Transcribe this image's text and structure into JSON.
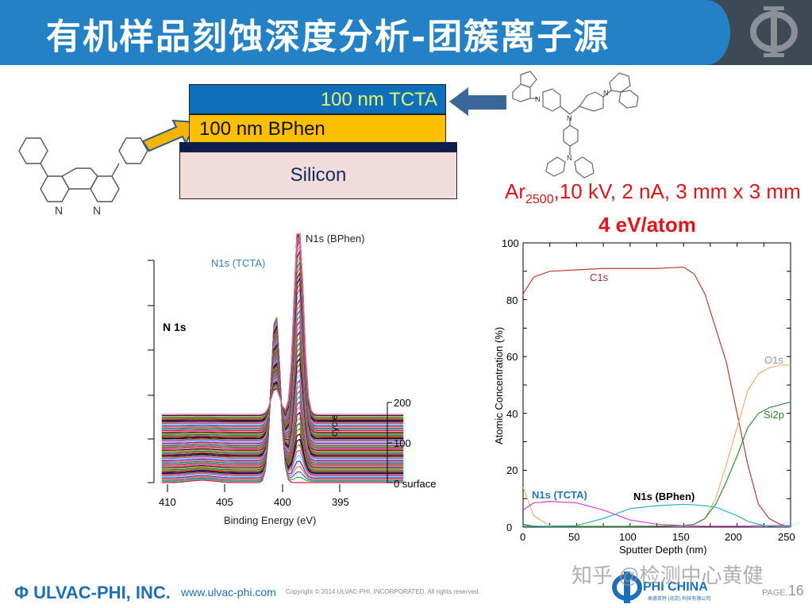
{
  "header": {
    "title": "有机样品刻蚀深度分析-团簇离子源",
    "logo_icon": "phi-logo-icon",
    "colors": {
      "blue": "#2481c5",
      "dark": "#3d4a55"
    }
  },
  "stack_diagram": {
    "layers": [
      {
        "label": "100 nm TCTA",
        "color": "#0f6fba"
      },
      {
        "label": "100 nm BPhen",
        "color": "#fcc000"
      },
      {
        "label": "Silicon",
        "color": "#f1dcdc"
      }
    ],
    "molecule_left": "BPhen structure",
    "molecule_right": "TCTA structure",
    "n_label": "N"
  },
  "conditions": {
    "beam_prefix": "Ar",
    "beam_sub": "2500",
    "beam_rest": ",10 kV, 2 nA, 3 mm x 3 mm",
    "energy": "4 eV/atom"
  },
  "chart_data": [
    {
      "type": "line",
      "title": "N 1s",
      "xlabel": "Binding Energy (eV)",
      "ylabel": "",
      "xlim": [
        412,
        391
      ],
      "x_ticks": [
        "410",
        "405",
        "400",
        "395"
      ],
      "z_axis_label": "cycle",
      "z_ticks": [
        "0 surface",
        "100",
        "200"
      ],
      "annotations": [
        "N1s (TCTA)",
        "N1s (BPhen)"
      ],
      "peaks": [
        {
          "name": "N1s (TCTA)",
          "binding_energy": 400.6,
          "color": "#3a7fb0"
        },
        {
          "name": "N1s (BPhen)",
          "binding_energy": 398.6,
          "color": "#333333"
        }
      ],
      "note": "Waterfall of N 1s spectra vs sputter cycle (0-200)"
    },
    {
      "type": "line",
      "title": "",
      "xlabel": "Sputter Depth (nm)",
      "ylabel": "Atomic Concentration (%)",
      "xlim": [
        0,
        250
      ],
      "ylim": [
        0,
        100
      ],
      "x_ticks": [
        "0",
        "50",
        "100",
        "150",
        "200",
        "250"
      ],
      "y_ticks": [
        "0",
        "20",
        "40",
        "60",
        "80",
        "100"
      ],
      "x": [
        0,
        10,
        25,
        50,
        75,
        100,
        125,
        150,
        160,
        170,
        180,
        190,
        200,
        210,
        220,
        230,
        240,
        250
      ],
      "series": [
        {
          "name": "C1s",
          "color": "#c0392b",
          "values": [
            82,
            88,
            90,
            90.5,
            91,
            91,
            91,
            91.5,
            89,
            82,
            70,
            58,
            40,
            22,
            8,
            3,
            1,
            0
          ]
        },
        {
          "name": "O1s",
          "color": "#f0b070",
          "values": [
            14,
            4,
            0.5,
            0.3,
            0.3,
            0.3,
            0.3,
            0.5,
            1,
            3,
            10,
            22,
            35,
            48,
            54,
            56,
            57,
            57
          ]
        },
        {
          "name": "Si2p",
          "color": "#2e8b3a",
          "values": [
            1,
            0.3,
            0.2,
            0.2,
            0.2,
            0.2,
            0.3,
            0.5,
            1,
            3,
            8,
            16,
            25,
            35,
            40,
            42,
            43,
            44
          ]
        },
        {
          "name": "N1s (TCTA)",
          "color": "#d63ed0",
          "values": [
            6,
            8.5,
            9,
            8.5,
            6,
            2.5,
            1,
            0.5,
            0.4,
            0.3,
            0.3,
            0.3,
            0.3,
            0.3,
            0.5,
            0.5,
            0.5,
            0.5
          ]
        },
        {
          "name": "N1s (BPhen)",
          "color": "#2fb5b5",
          "values": [
            0.5,
            0.3,
            0.3,
            0.5,
            3,
            6.5,
            7.5,
            8,
            7.8,
            7.5,
            7,
            5.5,
            4,
            2,
            1,
            0.3,
            0.2,
            0.2
          ]
        }
      ],
      "labels": {
        "c1s": "C1s",
        "o1s": "O1s",
        "si2p": "Si2p",
        "n_tcta": "N1s (TCTA)",
        "n_bphen": "N1s (BPhen)"
      }
    }
  ],
  "footer": {
    "company": "ULVAC-PHI, INC.",
    "url": "www.ulvac-phi.com",
    "copyright": "Copyright © 2014 ULVAC-PHI, INCORPORATED. All rights reserved.",
    "partner": "PHI CHINA",
    "partner_sub": "高德英特 (北京) 科技有限公司",
    "watermark": "知乎 @检测中心黄健",
    "page_label": "PAGE.",
    "page_number": "16"
  }
}
